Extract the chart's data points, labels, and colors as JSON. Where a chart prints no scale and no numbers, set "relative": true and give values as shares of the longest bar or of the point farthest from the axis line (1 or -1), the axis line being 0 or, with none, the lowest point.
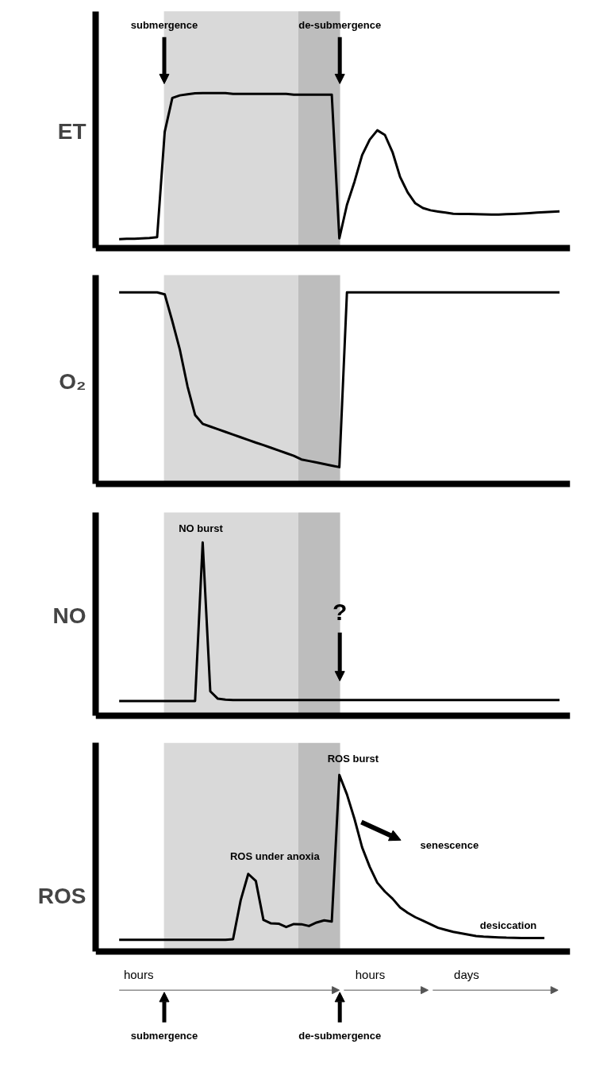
{
  "chart_data": [
    {
      "type": "line",
      "ylabel": "ET",
      "relative": true,
      "categories": [
        null,
        null,
        null,
        null,
        null,
        null,
        null,
        null,
        null,
        null,
        null,
        null,
        null,
        null,
        null,
        null,
        null,
        null,
        null,
        null,
        null,
        null,
        null,
        null,
        null,
        null,
        null,
        null,
        null,
        null,
        null,
        null,
        null,
        null,
        null,
        null,
        null,
        null,
        null,
        null,
        null,
        null,
        null,
        null,
        null,
        null,
        null,
        null,
        null,
        null,
        null,
        null,
        null,
        null,
        null,
        null,
        null,
        null,
        null
      ],
      "series": [
        {
          "color": "#000000",
          "values": [
            0.059,
            0.061,
            0.062,
            0.064,
            0.067,
            0.072,
            0.75,
            0.968,
            0.985,
            0.992,
            0.998,
            1,
            1,
            1,
            1,
            0.995,
            0.995,
            0.995,
            0.995,
            0.995,
            0.995,
            0.995,
            0.995,
            0.99,
            0.99,
            0.99,
            0.99,
            0.99,
            0.99,
            0.064,
            0.28,
            0.43,
            0.6,
            0.7,
            0.76,
            0.73,
            0.62,
            0.46,
            0.36,
            0.29,
            0.26,
            0.245,
            0.237,
            0.23,
            0.223,
            0.222,
            0.221,
            0.22,
            0.219,
            0.218,
            0.218,
            0.22,
            0.222,
            0.224,
            0.227,
            0.23,
            0.233,
            0.236,
            0.238
          ]
        }
      ],
      "annotations": [
        "submergence",
        "de-submergence"
      ]
    },
    {
      "type": "line",
      "ylabel": "O₂",
      "categories": [
        null,
        null,
        null,
        null,
        null,
        null,
        null,
        null,
        null,
        null,
        null,
        null,
        null,
        null,
        null,
        null,
        null,
        null,
        null,
        null,
        null,
        null,
        null,
        null,
        null,
        null,
        null,
        null,
        null,
        null,
        null,
        null,
        null,
        null,
        null,
        null,
        null,
        null,
        null,
        null,
        null,
        null,
        null,
        null,
        null,
        null,
        null,
        null,
        null,
        null,
        null,
        null,
        null,
        null,
        null,
        null,
        null,
        null,
        null
      ],
      "series": [
        {
          "color": "#000000",
          "values": [
            1,
            1,
            1,
            1,
            1,
            1,
            0.99,
            0.85,
            0.7,
            0.51,
            0.36,
            0.314,
            0.3,
            0.286,
            0.272,
            0.258,
            0.244,
            0.23,
            0.216,
            0.203,
            0.189,
            0.175,
            0.161,
            0.147,
            0.128,
            0.12,
            0.112,
            0.104,
            0.096,
            0.088,
            1,
            1,
            1,
            1,
            1,
            1,
            1,
            1,
            1,
            1,
            1,
            1,
            1,
            1,
            1,
            1,
            1,
            1,
            1,
            1,
            1,
            1,
            1,
            1,
            1,
            1,
            1,
            1,
            1
          ]
        }
      ],
      "relative": true
    },
    {
      "type": "line",
      "ylabel": "NO",
      "relative": true,
      "categories": [
        null,
        null,
        null,
        null,
        null,
        null,
        null,
        null,
        null,
        null,
        null,
        null,
        null,
        null,
        null,
        null,
        null,
        null,
        null,
        null,
        null,
        null,
        null,
        null,
        null,
        null,
        null,
        null,
        null,
        null,
        null,
        null,
        null,
        null,
        null,
        null,
        null,
        null,
        null,
        null,
        null,
        null,
        null,
        null,
        null,
        null,
        null,
        null,
        null,
        null,
        null,
        null,
        null,
        null,
        null,
        null,
        null,
        null,
        null
      ],
      "series": [
        {
          "color": "#000000",
          "values": [
            0.084,
            0.084,
            0.084,
            0.084,
            0.084,
            0.084,
            0.084,
            0.084,
            0.084,
            0.084,
            0.084,
            1,
            0.14,
            0.097,
            0.092,
            0.09,
            0.09,
            0.09,
            0.09,
            0.09,
            0.09,
            0.09,
            0.09,
            0.09,
            0.09,
            0.09,
            0.09,
            0.09,
            0.09,
            0.09,
            0.09,
            0.09,
            0.09,
            0.09,
            0.09,
            0.09,
            0.09,
            0.09,
            0.09,
            0.09,
            0.09,
            0.09,
            0.09,
            0.09,
            0.09,
            0.09,
            0.09,
            0.09,
            0.09,
            0.09,
            0.09,
            0.09,
            0.09,
            0.09,
            0.09,
            0.09,
            0.09,
            0.09,
            0.09
          ]
        }
      ],
      "annotations": [
        "NO burst",
        "?"
      ]
    },
    {
      "type": "line",
      "ylabel": "ROS",
      "relative": true,
      "categories": [
        null,
        null,
        null,
        null,
        null,
        null,
        null,
        null,
        null,
        null,
        null,
        null,
        null,
        null,
        null,
        null,
        null,
        null,
        null,
        null,
        null,
        null,
        null,
        null,
        null,
        null,
        null,
        null,
        null,
        null,
        null,
        null,
        null,
        null,
        null,
        null,
        null,
        null,
        null,
        null,
        null,
        null,
        null,
        null,
        null,
        null,
        null,
        null,
        null,
        null,
        null,
        null,
        null,
        null,
        null,
        null,
        null,
        null,
        null
      ],
      "series": [
        {
          "color": "#000000",
          "values": [
            0.067,
            0.067,
            0.067,
            0.067,
            0.067,
            0.067,
            0.067,
            0.067,
            0.067,
            0.067,
            0.067,
            0.067,
            0.067,
            0.067,
            0.067,
            0.07,
            0.29,
            0.44,
            0.4,
            0.18,
            0.16,
            0.158,
            0.139,
            0.156,
            0.155,
            0.145,
            0.165,
            0.177,
            0.17,
            1,
            0.89,
            0.75,
            0.59,
            0.48,
            0.39,
            0.34,
            0.3,
            0.25,
            0.22,
            0.195,
            0.175,
            0.155,
            0.135,
            0.123,
            0.112,
            0.104,
            0.096,
            0.088,
            0.085,
            0.083,
            0.081,
            0.079,
            0.078,
            0.077,
            0.077,
            0.077,
            0.077,
            null,
            null
          ]
        }
      ],
      "annotations": [
        "ROS burst",
        "ROS under anoxia",
        "senescence",
        "desiccation",
        "hours",
        "hours",
        "days",
        "submergence",
        "de-submergence"
      ]
    }
  ]
}
